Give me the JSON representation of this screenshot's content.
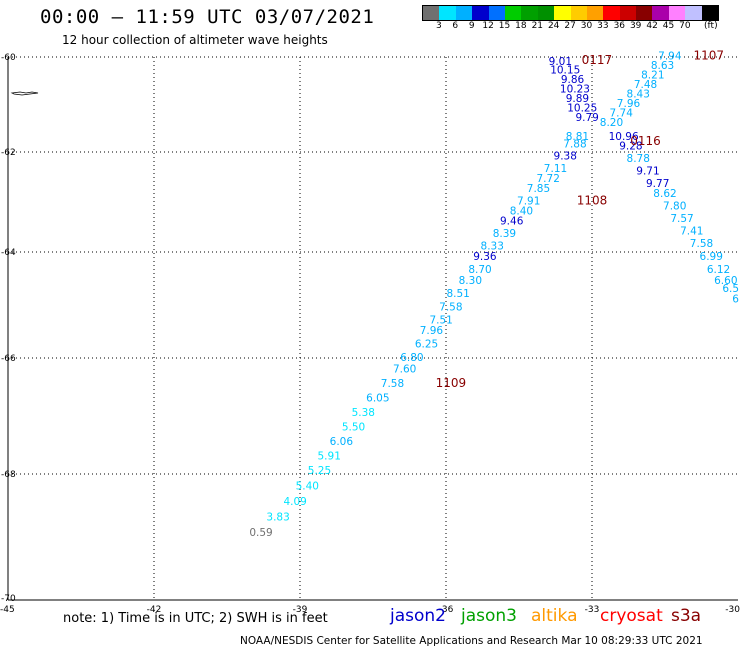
{
  "header": {
    "title": "00:00 — 11:59 UTC 03/07/2021",
    "subtitle": "12 hour collection of altimeter wave heights"
  },
  "colorbar": {
    "colors": [
      "#707070",
      "#00e5ff",
      "#00b0ff",
      "#0000cc",
      "#0070ff",
      "#00cc00",
      "#00a000",
      "#009000",
      "#ffff00",
      "#ffcc00",
      "#ffa000",
      "#ff0000",
      "#cc0000",
      "#880000",
      "#aa00aa",
      "#ff80ff",
      "#c0c0ff",
      "#000000"
    ],
    "ticks": [
      "3",
      "6",
      "9",
      "12",
      "15",
      "18",
      "21",
      "24",
      "27",
      "30",
      "33",
      "36",
      "39",
      "42",
      "45",
      "70"
    ],
    "unit": "(ft)"
  },
  "axes": {
    "lat_ticks": [
      "-60",
      "-62",
      "-64",
      "-66",
      "-68",
      "-70"
    ],
    "lon_ticks": [
      "-45",
      "-42",
      "-39",
      "-36",
      "-33",
      "-30"
    ]
  },
  "note": "note: 1) Time is in UTC; 2) SWH is in feet",
  "legend": [
    {
      "label": "jason2",
      "color": "#0000cc"
    },
    {
      "label": "jason3",
      "color": "#00a000"
    },
    {
      "label": "altika",
      "color": "#ff9900"
    },
    {
      "label": "cryosat",
      "color": "#ff0000"
    },
    {
      "label": "s3a",
      "color": "#880000"
    }
  ],
  "footer": "NOAA/NESDIS Center for Satellite Applications and Research    Mar 10 08:29:33 UTC 2021",
  "chart_data": {
    "type": "scatter",
    "title": "00:00 — 11:59 UTC 03/07/2021",
    "subtitle": "12 hour collection of altimeter wave heights",
    "xlabel": "",
    "ylabel": "",
    "xlim": [
      -45,
      -30
    ],
    "ylim": [
      -70,
      -60
    ],
    "grid": true,
    "pass_labels": [
      {
        "text": "0117",
        "lon": -32.9,
        "lat": -60.15
      },
      {
        "text": "1107",
        "lon": -30.6,
        "lat": -60.05
      },
      {
        "text": "0116",
        "lon": -31.9,
        "lat": -61.85
      },
      {
        "text": "1108",
        "lon": -33.0,
        "lat": -63.05
      },
      {
        "text": "1109",
        "lon": -35.9,
        "lat": -66.5
      }
    ],
    "points": [
      {
        "v": "9.01",
        "lon": -33.65,
        "lat": -60.17
      },
      {
        "v": "10.15",
        "lon": -33.55,
        "lat": -60.35
      },
      {
        "v": "9.86",
        "lon": -33.4,
        "lat": -60.55
      },
      {
        "v": "10.23",
        "lon": -33.35,
        "lat": -60.75
      },
      {
        "v": "9.89",
        "lon": -33.3,
        "lat": -60.95
      },
      {
        "v": "10.25",
        "lon": -33.2,
        "lat": -61.15
      },
      {
        "v": "9.79",
        "lon": -33.1,
        "lat": -61.35
      },
      {
        "v": "8.81",
        "lon": -33.3,
        "lat": -61.75
      },
      {
        "v": "7.88",
        "lon": -33.35,
        "lat": -61.9
      },
      {
        "v": "9.38",
        "lon": -33.55,
        "lat": -62.15
      },
      {
        "v": "7.11",
        "lon": -33.75,
        "lat": -62.4
      },
      {
        "v": "7.72",
        "lon": -33.9,
        "lat": -62.6
      },
      {
        "v": "7.85",
        "lon": -34.1,
        "lat": -62.8
      },
      {
        "v": "7.91",
        "lon": -34.3,
        "lat": -63.05
      },
      {
        "v": "8.40",
        "lon": -34.45,
        "lat": -63.25
      },
      {
        "v": "9.46",
        "lon": -34.65,
        "lat": -63.45
      },
      {
        "v": "8.39",
        "lon": -34.8,
        "lat": -63.7
      },
      {
        "v": "8.33",
        "lon": -35.05,
        "lat": -63.95
      },
      {
        "v": "9.36",
        "lon": -35.2,
        "lat": -64.15
      },
      {
        "v": "8.70",
        "lon": -35.3,
        "lat": -64.4
      },
      {
        "v": "8.30",
        "lon": -35.5,
        "lat": -64.6
      },
      {
        "v": "8.51",
        "lon": -35.75,
        "lat": -64.85
      },
      {
        "v": "7.58",
        "lon": -35.9,
        "lat": -65.1
      },
      {
        "v": "7.51",
        "lon": -36.1,
        "lat": -65.35
      },
      {
        "v": "7.96",
        "lon": -36.3,
        "lat": -65.55
      },
      {
        "v": "6.25",
        "lon": -36.4,
        "lat": -65.8
      },
      {
        "v": "6.80",
        "lon": -36.7,
        "lat": -66.05
      },
      {
        "v": "7.60",
        "lon": -36.85,
        "lat": -66.25
      },
      {
        "v": "7.58",
        "lon": -37.1,
        "lat": -66.5
      },
      {
        "v": "6.05",
        "lon": -37.4,
        "lat": -66.75
      },
      {
        "v": "5.38",
        "lon": -37.7,
        "lat": -67.0
      },
      {
        "v": "5.50",
        "lon": -37.9,
        "lat": -67.25
      },
      {
        "v": "6.06",
        "lon": -38.15,
        "lat": -67.5
      },
      {
        "v": "5.91",
        "lon": -38.4,
        "lat": -67.75
      },
      {
        "v": "5.25",
        "lon": -38.6,
        "lat": -68.0
      },
      {
        "v": "5.40",
        "lon": -38.85,
        "lat": -68.25
      },
      {
        "v": "4.09",
        "lon": -39.1,
        "lat": -68.5
      },
      {
        "v": "3.83",
        "lon": -39.45,
        "lat": -68.75
      },
      {
        "v": "0.59",
        "lon": -39.8,
        "lat": -69.0
      },
      {
        "v": "7.94",
        "lon": -31.4,
        "lat": -60.05
      },
      {
        "v": "8.63",
        "lon": -31.55,
        "lat": -60.25
      },
      {
        "v": "8.21",
        "lon": -31.75,
        "lat": -60.45
      },
      {
        "v": "7.48",
        "lon": -31.9,
        "lat": -60.65
      },
      {
        "v": "8.43",
        "lon": -32.05,
        "lat": -60.85
      },
      {
        "v": "7.96",
        "lon": -32.25,
        "lat": -61.05
      },
      {
        "v": "7.74",
        "lon": -32.4,
        "lat": -61.25
      },
      {
        "v": "8.20",
        "lon": -32.6,
        "lat": -61.45
      },
      {
        "v": "10.96",
        "lon": -32.35,
        "lat": -61.75
      },
      {
        "v": "9.28",
        "lon": -32.2,
        "lat": -61.95
      },
      {
        "v": "8.78",
        "lon": -32.05,
        "lat": -62.2
      },
      {
        "v": "9.71",
        "lon": -31.85,
        "lat": -62.45
      },
      {
        "v": "9.77",
        "lon": -31.65,
        "lat": -62.7
      },
      {
        "v": "8.62",
        "lon": -31.5,
        "lat": -62.9
      },
      {
        "v": "7.80",
        "lon": -31.3,
        "lat": -63.15
      },
      {
        "v": "7.57",
        "lon": -31.15,
        "lat": -63.4
      },
      {
        "v": "7.41",
        "lon": -30.95,
        "lat": -63.65
      },
      {
        "v": "7.58",
        "lon": -30.75,
        "lat": -63.9
      },
      {
        "v": "6.99",
        "lon": -30.55,
        "lat": -64.15
      },
      {
        "v": "6.12",
        "lon": -30.4,
        "lat": -64.4
      },
      {
        "v": "6.60",
        "lon": -30.25,
        "lat": -64.6
      },
      {
        "v": "6.5",
        "lon": -30.15,
        "lat": -64.75
      },
      {
        "v": "6",
        "lon": -30.05,
        "lat": -64.95
      }
    ]
  }
}
